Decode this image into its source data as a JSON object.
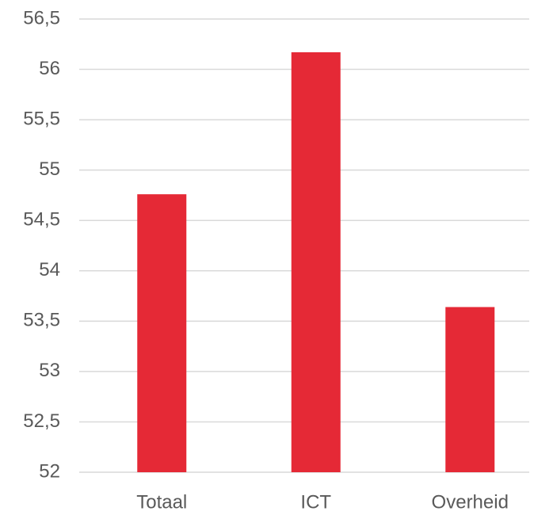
{
  "chart_data": {
    "type": "bar",
    "categories": [
      "Totaal",
      "ICT",
      "Overheid"
    ],
    "values": [
      54.76,
      56.17,
      53.64
    ],
    "color": "#e52936",
    "ylim": [
      52,
      56.5
    ],
    "yticks": [
      52,
      {
        "value": 52.5,
        "label": "52,5"
      },
      53,
      {
        "value": 53.5,
        "label": "53,5"
      },
      54,
      {
        "value": 54.5,
        "label": "54,5"
      },
      55,
      {
        "value": 55.5,
        "label": "55,5"
      },
      56,
      {
        "value": 56.5,
        "label": "56,5"
      }
    ],
    "grid": true
  }
}
